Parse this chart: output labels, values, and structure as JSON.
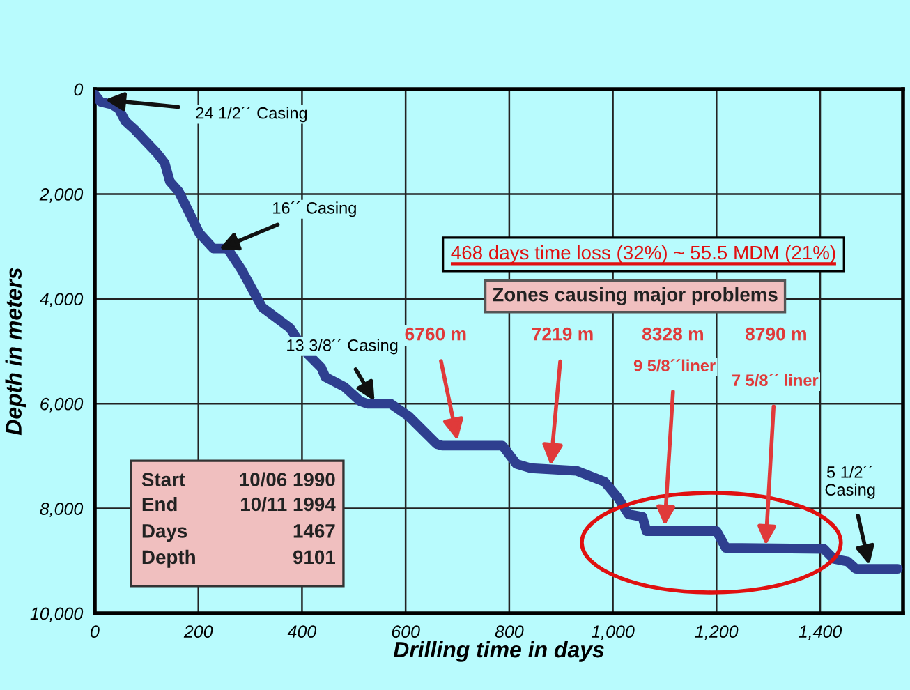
{
  "chart_data": {
    "type": "line",
    "xlabel": "Drilling time in days",
    "ylabel": "Depth in meters",
    "x": [
      0,
      11,
      32,
      46,
      59,
      78,
      121,
      135,
      145,
      162,
      175,
      202,
      229,
      256,
      283,
      323,
      377,
      391,
      410,
      437,
      445,
      482,
      512,
      526,
      571,
      606,
      660,
      671,
      787,
      814,
      841,
      930,
      984,
      1011,
      1030,
      1057,
      1065,
      1200,
      1218,
      1407,
      1426,
      1453,
      1469,
      1550
    ],
    "series": [
      {
        "color": "#2e3f8f",
        "values": [
          100,
          240,
          290,
          370,
          610,
          780,
          1230,
          1410,
          1760,
          1950,
          2210,
          2750,
          3040,
          3040,
          3440,
          4160,
          4560,
          4770,
          5040,
          5310,
          5490,
          5680,
          5950,
          6000,
          6000,
          6240,
          6770,
          6800,
          6800,
          7150,
          7230,
          7280,
          7490,
          7810,
          8110,
          8160,
          8430,
          8430,
          8750,
          8770,
          8960,
          9010,
          9150,
          9150
        ]
      }
    ],
    "xlim": [
      0,
      1560
    ],
    "ylim": [
      10000,
      0
    ],
    "xticks": [
      0,
      200,
      400,
      600,
      800,
      {
        "value": 1000,
        "label": "1,000"
      },
      {
        "value": 1200,
        "label": "1,200"
      },
      {
        "value": 1400,
        "label": "1,400"
      }
    ],
    "yticks": [
      0,
      {
        "value": 2000,
        "label": "2,000"
      },
      {
        "value": 4000,
        "label": "4,000"
      },
      {
        "value": 6000,
        "label": "6,000"
      },
      {
        "value": 8000,
        "label": "8,000"
      },
      {
        "value": 10000,
        "label": "10,000"
      }
    ],
    "grid": true,
    "marker": "none",
    "line_style": "solid",
    "annotations": [
      {
        "text": "24 1/2´´ Casing",
        "x": 20,
        "y": 200
      },
      {
        "text": "16´´ Casing",
        "x": 240,
        "y": 3050
      },
      {
        "text": "13 3/8´´ Casing",
        "x": 540,
        "y": 5950
      },
      {
        "text": "6760 m",
        "x": 700,
        "y": 6700
      },
      {
        "text": "7219 m",
        "x": 880,
        "y": 7180
      },
      "8328 m",
      "8790 m",
      {
        "text": "9 5/8´´liner",
        "x": 1100,
        "y": 8330
      },
      {
        "text": "7 5/8´´ liner",
        "x": 1295,
        "y": 8700
      },
      {
        "text": "5 1/2´´\nCasing",
        "x": 1495,
        "y": 9080
      },
      "468 days time loss (32%) ~ 55.5 MDM (21%)",
      "Zones causing major problems",
      "Start",
      "10/06 1990",
      "End",
      "10/11 1994",
      "Days",
      "1467",
      "Depth",
      "9101"
    ]
  }
}
